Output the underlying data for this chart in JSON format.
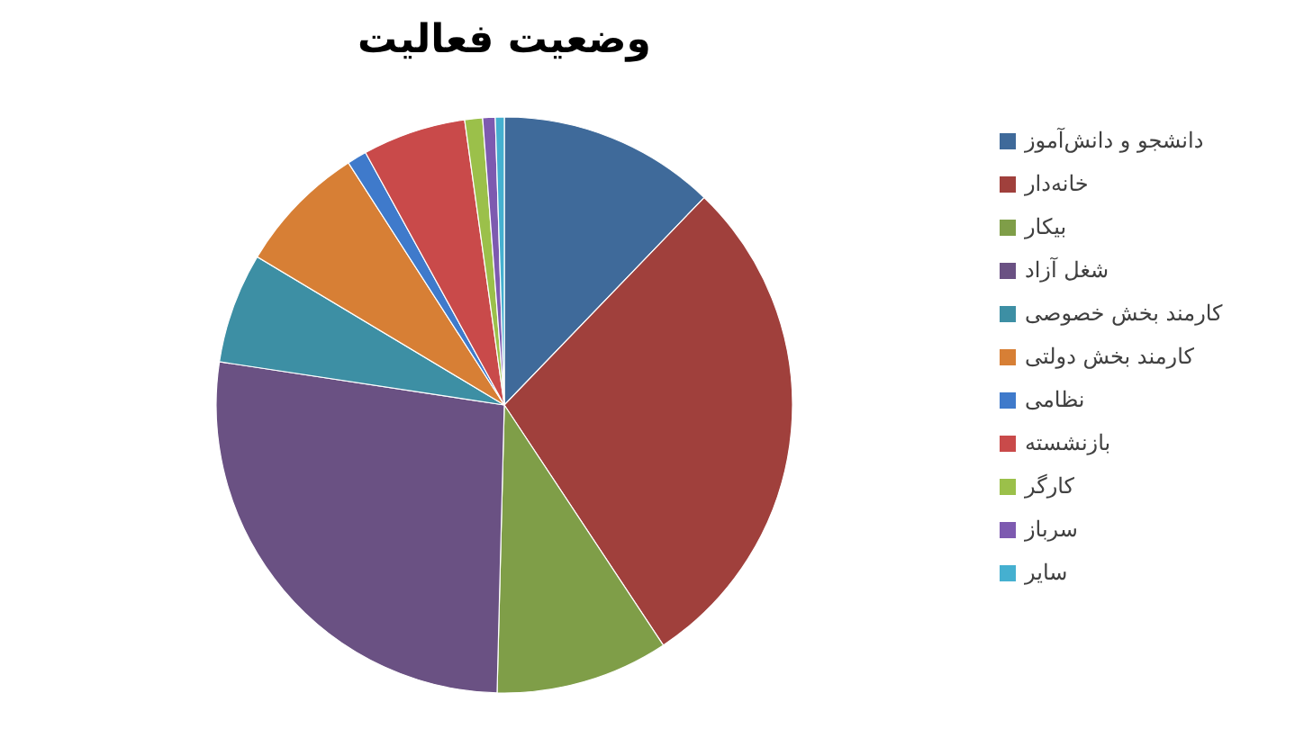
{
  "chart_data": {
    "type": "pie",
    "title": "وضعیت فعالیت",
    "categories": [
      "دانشجو و دانش‌آموز",
      "خانه‌دار",
      "بیکار",
      "شغل آزاد",
      "کارمند بخش خصوصی",
      "کارمند بخش دولتی",
      "نظامی",
      "بازنشسته",
      "کارگر",
      "سرباز",
      "سایر"
    ],
    "values": [
      12.2,
      28.5,
      9.7,
      27.0,
      6.2,
      7.3,
      1.1,
      5.8,
      1.0,
      0.7,
      0.5
    ],
    "colors": [
      "#3f6a9a",
      "#a0403c",
      "#7f9e48",
      "#6a5183",
      "#3d8fa4",
      "#d77f35",
      "#3f7acb",
      "#c94a4a",
      "#9bc04a",
      "#7d5ab0",
      "#45b0d0"
    ],
    "legend": "right"
  }
}
